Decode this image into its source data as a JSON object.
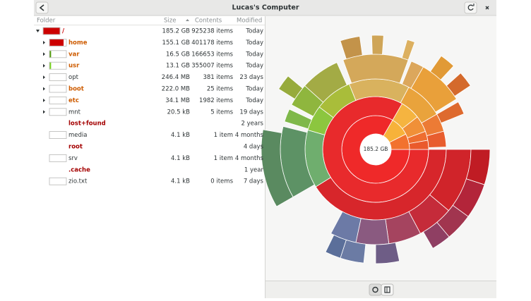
{
  "window": {
    "title": "Lucas's Computer"
  },
  "columns": [
    "Folder",
    "Size",
    "Contents",
    "Modified"
  ],
  "rows": [
    {
      "name": "/",
      "size": "185.2 GB",
      "contents": "925238 items",
      "modified": "Today"
    },
    {
      "name": "home",
      "size": "155.1 GB",
      "contents": "401178 items",
      "modified": "Today"
    },
    {
      "name": "var",
      "size": "16.5 GB",
      "contents": "166653 items",
      "modified": "Today"
    },
    {
      "name": "usr",
      "size": "13.1 GB",
      "contents": "355007 items",
      "modified": "Today"
    },
    {
      "name": "opt",
      "size": "246.4 MB",
      "contents": "381 items",
      "modified": "23 days"
    },
    {
      "name": "boot",
      "size": "222.0 MB",
      "contents": "25 items",
      "modified": "Today"
    },
    {
      "name": "etc",
      "size": "34.1 MB",
      "contents": "1982 items",
      "modified": "Today"
    },
    {
      "name": "mnt",
      "size": "20.5 kB",
      "contents": "5 items",
      "modified": "19 days"
    },
    {
      "name": "lost+found",
      "modified": "2 years"
    },
    {
      "name": "media",
      "size": "4.1 kB",
      "contents": "1 item",
      "modified": "4 months"
    },
    {
      "name": "root",
      "modified": "4 days"
    },
    {
      "name": "srv",
      "size": "4.1 kB",
      "contents": "1 item",
      "modified": "4 months"
    },
    {
      "name": ".cache",
      "modified": "1 year"
    },
    {
      "name": "zio.txt",
      "size": "4.1 kB",
      "contents": "0 items",
      "modified": "7 days"
    }
  ],
  "center_label": "185.2 GB"
}
